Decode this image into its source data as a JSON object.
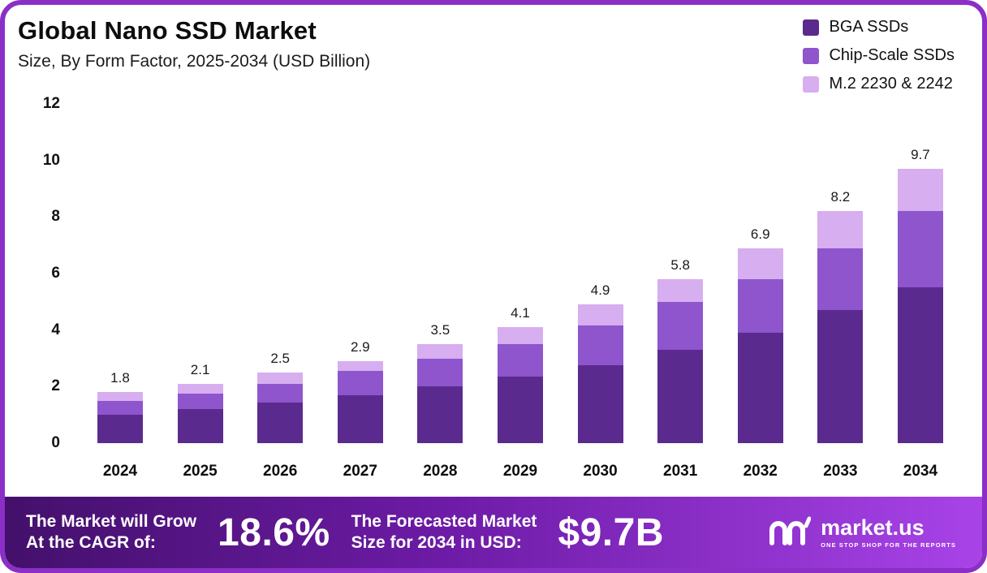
{
  "title": "Global Nano SSD Market",
  "subtitle": "Size, By Form Factor, 2025-2034 (USD Billion)",
  "legend": [
    {
      "label": "BGA SSDs",
      "color": "#5b2a8e"
    },
    {
      "label": "Chip-Scale SSDs",
      "color": "#8e55cc"
    },
    {
      "label": "M.2 2230 & 2242",
      "color": "#d7aef0"
    }
  ],
  "chart_data": {
    "type": "bar",
    "stacked": true,
    "title": "Global Nano SSD Market Size, By Form Factor, 2025-2034 (USD Billion)",
    "categories": [
      "2024",
      "2025",
      "2026",
      "2027",
      "2028",
      "2029",
      "2030",
      "2031",
      "2032",
      "2033",
      "2034"
    ],
    "series": [
      {
        "name": "BGA SSDs",
        "color": "#5b2a8e",
        "values": [
          1.0,
          1.2,
          1.45,
          1.7,
          2.0,
          2.35,
          2.75,
          3.3,
          3.9,
          4.7,
          5.5
        ]
      },
      {
        "name": "Chip-Scale SSDs",
        "color": "#8e55cc",
        "values": [
          0.5,
          0.55,
          0.65,
          0.85,
          1.0,
          1.15,
          1.4,
          1.7,
          1.9,
          2.2,
          2.7
        ]
      },
      {
        "name": "M.2 2230 & 2242",
        "color": "#d7aef0",
        "values": [
          0.3,
          0.35,
          0.4,
          0.35,
          0.5,
          0.6,
          0.75,
          0.8,
          1.1,
          1.3,
          1.5
        ]
      }
    ],
    "totals": [
      "1.8",
      "2.1",
      "2.5",
      "2.9",
      "3.5",
      "4.1",
      "4.9",
      "5.8",
      "6.9",
      "8.2",
      "9.7"
    ],
    "xlabel": "",
    "ylabel": "",
    "ylim": [
      0,
      12
    ],
    "yticks": [
      0,
      2,
      4,
      6,
      8,
      10,
      12
    ],
    "grid": false,
    "legend_position": "top-right"
  },
  "footer": {
    "cagr_label": "The Market will Grow\nAt the CAGR of:",
    "cagr_value": "18.6%",
    "forecast_label": "The Forecasted Market\nSize for 2034 in USD:",
    "forecast_value": "$9.7B",
    "brand": "market.us",
    "brand_tagline": "ONE STOP SHOP FOR THE REPORTS"
  }
}
